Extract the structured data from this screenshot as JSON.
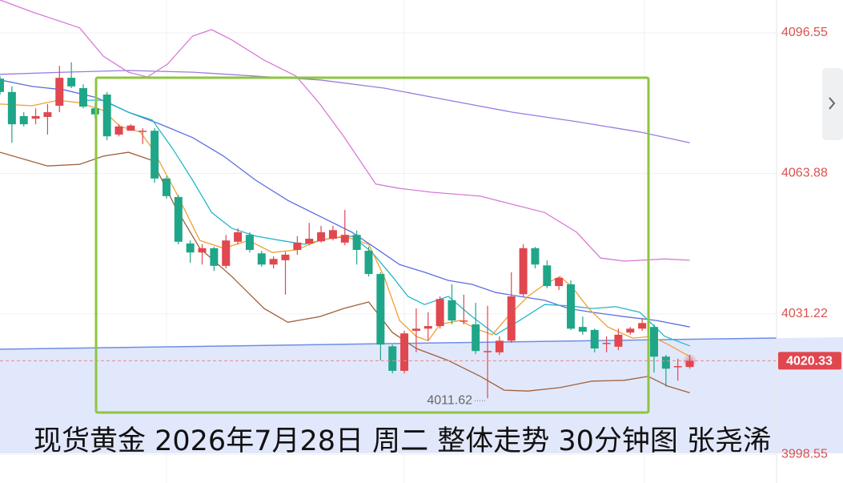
{
  "chart_data": {
    "type": "candlestick",
    "title": "现货黄金 2026年7月28日 周二 整体走势 30分钟图 张尧浠",
    "up_color": "#e0474f",
    "down_color": "#1fa688",
    "open": [
      4085.9,
      4082.8,
      4077.2,
      4076.6,
      4077.0,
      4079.6,
      4086.1,
      4083.7,
      4079.0,
      4082.2,
      4072.9,
      4073.8,
      4073.8,
      4073.8,
      4062.7,
      4058.4,
      4047.6,
      4045.5,
      4046.5,
      4042.4,
      4048.0,
      4049.6,
      4045.3,
      4042.7,
      4043.7,
      4046.1,
      4047.6,
      4048.1,
      4048.7,
      4047.8,
      4049.6,
      4045.9,
      4040.5,
      4023.7,
      4018.0,
      4027.3,
      4027.8,
      4028.4,
      4034.4,
      4029.7,
      4028.8,
      4022.6,
      4022.3,
      4025.0,
      4035.8,
      4046.5,
      4042.5,
      4037.7,
      4038.1,
      4028.2,
      4027.5,
      4024.5,
      4023.6,
      4026.9,
      4027.8,
      4028.2,
      4021.3,
      4019.1,
      4018.9
    ],
    "high": [
      4086.5,
      4084.1,
      4078.1,
      4079.0,
      4080.0,
      4088.9,
      4089.7,
      4084.6,
      4080.3,
      4082.8,
      4075.3,
      4075.3,
      4074.4,
      4074.4,
      4063.2,
      4058.9,
      4048.3,
      4047.4,
      4046.8,
      4049.6,
      4051.1,
      4050.2,
      4045.9,
      4044.6,
      4045.7,
      4049.3,
      4052.4,
      4051.7,
      4051.7,
      4055.4,
      4050.6,
      4046.8,
      4040.9,
      4024.1,
      4027.3,
      4032.5,
      4031.6,
      4035.3,
      4038.1,
      4035.7,
      4033.8,
      4033.1,
      4026.0,
      4040.9,
      4047.4,
      4046.8,
      4043.7,
      4039.9,
      4039.0,
      4030.6,
      4027.8,
      4026.0,
      4027.8,
      4028.2,
      4030.3,
      4028.8,
      4021.7,
      4020.8,
      4021.7
    ],
    "low": [
      4082.2,
      4071.0,
      4074.8,
      4075.3,
      4072.9,
      4078.1,
      4083.7,
      4079.0,
      4076.6,
      4071.6,
      4072.5,
      4073.8,
      4070.7,
      4061.7,
      4058.0,
      4047.4,
      4043.1,
      4042.7,
      4041.2,
      4041.8,
      4047.4,
      4045.5,
      4042.2,
      4041.8,
      4035.7,
      4045.0,
      4047.2,
      4047.8,
      4048.3,
      4047.2,
      4042.7,
      4039.9,
      4020.4,
      4017.4,
      4017.4,
      4022.3,
      4025.0,
      4027.8,
      4028.8,
      4028.8,
      4021.9,
      4011.62,
      4021.7,
      4024.5,
      4035.3,
      4041.8,
      4037.2,
      4036.8,
      4027.5,
      4026.4,
      4022.3,
      4022.3,
      4022.8,
      4026.4,
      4027.3,
      4017.6,
      4014.3,
      4015.7,
      4018.5
    ],
    "close": [
      4082.8,
      4075.3,
      4075.3,
      4077.2,
      4078.1,
      4086.1,
      4084.1,
      4079.4,
      4077.6,
      4072.5,
      4074.8,
      4075.0,
      4073.8,
      4062.7,
      4058.6,
      4048.0,
      4045.5,
      4046.5,
      4042.4,
      4048.3,
      4050.2,
      4046.1,
      4042.7,
      4044.0,
      4045.0,
      4047.8,
      4048.7,
      4050.2,
      4050.7,
      4049.6,
      4046.1,
      4040.5,
      4024.1,
      4018.0,
      4026.7,
      4027.8,
      4028.4,
      4034.7,
      4029.7,
      4029.7,
      4022.6,
      4022.6,
      4025.0,
      4035.3,
      4046.5,
      4042.7,
      4037.7,
      4039.6,
      4027.8,
      4027.1,
      4023.2,
      4024.5,
      4026.4,
      4027.8,
      4029.1,
      4021.3,
      4018.5,
      4019.1,
      4020.33
    ],
    "overlays": [
      {
        "color": "#9b7be0",
        "x": [
          0,
          5.4,
          10.8,
          16.2,
          21.5,
          26.9,
          32.3,
          37.7,
          43.1,
          48.5,
          53.8,
          58.0
        ],
        "values": [
          4086.9,
          4087.4,
          4087.8,
          4087.4,
          4086.5,
          4085.6,
          4083.7,
          4080.9,
          4078.1,
          4075.9,
          4073.5,
          4071.0
        ]
      },
      {
        "color": "#d87ad8",
        "x": [
          0,
          2.7,
          6.7,
          8.7,
          10.8,
          12.4,
          14.1,
          16.2,
          17.8,
          19.5,
          22.2,
          24.9,
          26.9,
          28.9,
          31.6,
          33.6,
          36.3,
          40.4,
          43.1,
          45.8,
          48.5,
          50.5,
          52.5,
          55.9,
          58.0
        ],
        "values": [
          4104.2,
          4101.4,
          4097.7,
          4091.1,
          4087.4,
          4086.3,
          4089.3,
          4095.8,
          4097.3,
          4094.9,
          4090.2,
          4086.5,
          4080.0,
          4072.5,
          4061.4,
          4060.4,
          4059.5,
          4058.6,
          4056.7,
          4054.8,
          4050.2,
          4044.2,
          4043.5,
          4044.0,
          4043.7
        ]
      },
      {
        "color": "#a0603a",
        "x": [
          0,
          4.0,
          6.7,
          8.7,
          10.8,
          12.8,
          14.8,
          16.8,
          19.5,
          22.2,
          24.2,
          26.9,
          28.9,
          31.0,
          33.0,
          35.0,
          37.7,
          40.4,
          42.4,
          44.4,
          47.1,
          49.8,
          52.5,
          54.5,
          56.2,
          58.0
        ],
        "values": [
          4068.8,
          4065.6,
          4066.0,
          4067.9,
          4068.8,
          4066.9,
          4055.8,
          4046.5,
          4039.9,
          4032.5,
          4029.3,
          4030.6,
          4032.5,
          4034.0,
          4026.9,
          4023.2,
          4020.4,
          4016.7,
          4013.5,
          4013.3,
          4014.1,
          4015.6,
          4015.8,
          4016.7,
          4014.4,
          4012.9
        ]
      },
      {
        "color": "#5b6ee0",
        "x": [
          0,
          2.7,
          5.4,
          8.1,
          10.8,
          13.5,
          16.2,
          18.8,
          21.5,
          24.2,
          26.9,
          29.6,
          31.6,
          33.6,
          35.7,
          37.7,
          39.7,
          41.7,
          43.7,
          45.8,
          47.8,
          49.8,
          52.5,
          55.2,
          58.0
        ],
        "values": [
          4085.6,
          4084.1,
          4083.3,
          4081.5,
          4078.1,
          4075.3,
          4072.2,
          4067.9,
          4062.3,
          4057.6,
          4053.9,
          4050.2,
          4046.5,
          4042.7,
          4040.9,
          4039.0,
          4038.1,
          4036.2,
          4035.3,
          4034.4,
          4032.5,
          4031.6,
          4030.6,
          4029.7,
          4028.2
        ]
      },
      {
        "color": "#22b8c8",
        "x": [
          6.7,
          8.7,
          10.8,
          12.8,
          14.5,
          16.2,
          17.8,
          19.5,
          21.5,
          23.6,
          25.6,
          27.6,
          29.6,
          31.3,
          33.0,
          34.3,
          35.7,
          37.7,
          39.7,
          41.7,
          43.7,
          45.8,
          47.8,
          49.8,
          51.8,
          53.8,
          55.9,
          58.0
        ],
        "values": [
          4080.9,
          4080.9,
          4078.1,
          4076.3,
          4069.7,
          4062.3,
          4054.8,
          4051.1,
          4049.3,
          4048.3,
          4047.4,
          4048.7,
          4049.3,
          4045.5,
          4039.9,
          4035.3,
          4033.4,
          4035.3,
          4030.6,
          4026.4,
          4029.7,
          4033.4,
          4033.1,
          4032.5,
          4032.9,
          4031.6,
          4026.0,
          4023.8
        ]
      },
      {
        "color": "#f0a030",
        "x": [
          0,
          2.7,
          4.9,
          6.7,
          8.7,
          10.1,
          11.8,
          12.8,
          14.8,
          16.8,
          18.8,
          20.9,
          22.9,
          24.9,
          26.9,
          28.9,
          31.0,
          32.3,
          33.6,
          35.0,
          36.0,
          37.0,
          38.7,
          40.0,
          41.4,
          42.7,
          44.4,
          45.8,
          47.1,
          48.1,
          49.5,
          51.1,
          53.2,
          54.8,
          56.2,
          58.0
        ],
        "values": [
          4080.0,
          4079.6,
          4080.9,
          4080.3,
          4078.5,
          4074.8,
          4073.5,
          4069.7,
          4059.5,
          4048.3,
          4046.5,
          4048.3,
          4045.5,
          4046.1,
          4048.3,
          4049.3,
          4047.4,
          4039.9,
          4029.7,
          4026.0,
          4025.0,
          4028.8,
          4029.7,
          4027.8,
          4026.4,
          4030.6,
          4035.3,
          4038.1,
          4039.9,
          4037.5,
          4032.5,
          4028.2,
          4025.6,
          4026.0,
          4024.1,
          4021.3
        ]
      }
    ],
    "xlim": [
      0,
      65.3
    ],
    "ylim": [
      3991.93,
      4104.18
    ],
    "yticks": [
      4096.55,
      4063.88,
      4031.22,
      3998.55
    ],
    "grid": true
  }
}
